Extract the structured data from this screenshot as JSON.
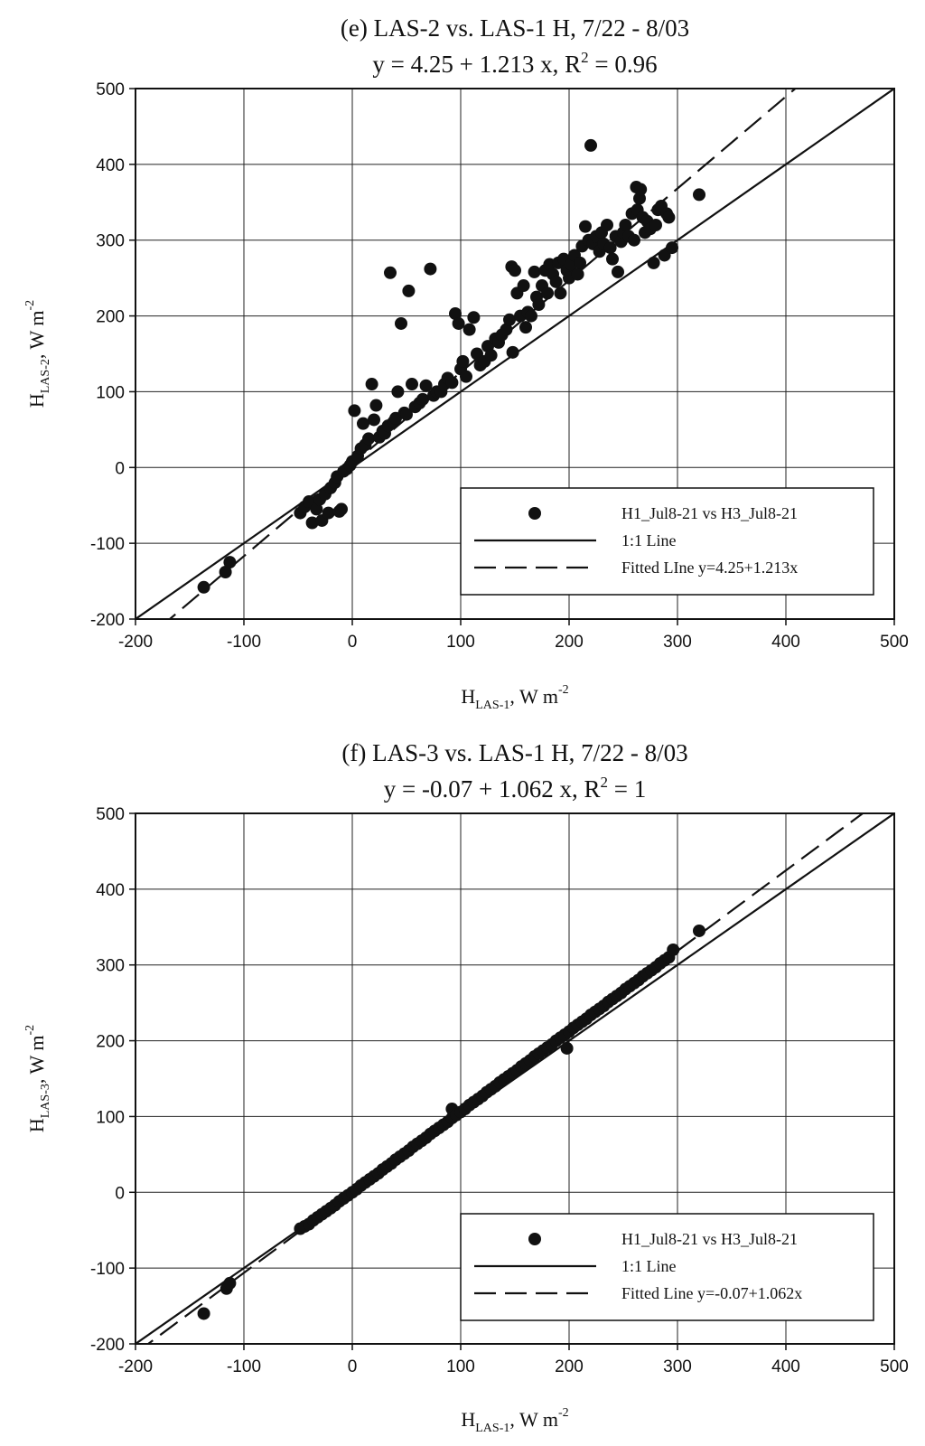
{
  "chart_data": [
    {
      "type": "scatter",
      "title_line1": "(e) LAS-2 vs. LAS-1 H, 7/22 - 8/03",
      "title_line2_main": "y =  4.25 + 1.213 x, R",
      "title_line2_sup": "2",
      "title_line2_tail": " = 0.96",
      "xlabel": {
        "main": "H",
        "sub": "LAS-1",
        "rest": ", W m",
        "sup": "-2"
      },
      "ylabel": {
        "main": "H",
        "sub": "LAS-2",
        "rest": ", W m",
        "sup": "-2"
      },
      "xlim": [
        -200,
        500
      ],
      "ylim": [
        -200,
        500
      ],
      "xticks": [
        -200,
        -100,
        0,
        100,
        200,
        300,
        400,
        500
      ],
      "yticks": [
        -200,
        -100,
        0,
        100,
        200,
        300,
        400,
        500
      ],
      "grid": true,
      "legend_position": "lower-right",
      "legend": [
        "H1_Jul8-21 vs H3_Jul8-21",
        "1:1 Line",
        "Fitted LIne y=4.25+1.213x"
      ],
      "fit": {
        "intercept": 4.25,
        "slope": 1.213
      },
      "series": [
        {
          "marker": "filled-circle",
          "points": [
            [
              -137,
              -158
            ],
            [
              -117,
              -138
            ],
            [
              -113,
              -125
            ],
            [
              -48,
              -60
            ],
            [
              -44,
              -52
            ],
            [
              -40,
              -45
            ],
            [
              -37,
              -73
            ],
            [
              -33,
              -55
            ],
            [
              -30,
              -42
            ],
            [
              -28,
              -70
            ],
            [
              -25,
              -35
            ],
            [
              -22,
              -60
            ],
            [
              -20,
              -27
            ],
            [
              -16,
              -20
            ],
            [
              -14,
              -12
            ],
            [
              -12,
              -58
            ],
            [
              -10,
              -55
            ],
            [
              -8,
              -5
            ],
            [
              -5,
              -2
            ],
            [
              -2,
              3
            ],
            [
              0,
              8
            ],
            [
              2,
              75
            ],
            [
              5,
              15
            ],
            [
              8,
              25
            ],
            [
              10,
              58
            ],
            [
              12,
              30
            ],
            [
              15,
              38
            ],
            [
              18,
              110
            ],
            [
              20,
              63
            ],
            [
              22,
              82
            ],
            [
              25,
              40
            ],
            [
              28,
              48
            ],
            [
              30,
              45
            ],
            [
              33,
              55
            ],
            [
              35,
              257
            ],
            [
              38,
              60
            ],
            [
              40,
              65
            ],
            [
              42,
              100
            ],
            [
              45,
              190
            ],
            [
              48,
              72
            ],
            [
              50,
              70
            ],
            [
              52,
              233
            ],
            [
              55,
              110
            ],
            [
              58,
              80
            ],
            [
              62,
              85
            ],
            [
              65,
              90
            ],
            [
              68,
              108
            ],
            [
              72,
              262
            ],
            [
              75,
              95
            ],
            [
              78,
              100
            ],
            [
              82,
              100
            ],
            [
              85,
              110
            ],
            [
              88,
              118
            ],
            [
              92,
              112
            ],
            [
              95,
              203
            ],
            [
              98,
              190
            ],
            [
              100,
              130
            ],
            [
              102,
              140
            ],
            [
              105,
              120
            ],
            [
              108,
              182
            ],
            [
              112,
              198
            ],
            [
              115,
              150
            ],
            [
              118,
              135
            ],
            [
              122,
              140
            ],
            [
              125,
              160
            ],
            [
              128,
              148
            ],
            [
              132,
              170
            ],
            [
              135,
              165
            ],
            [
              138,
              175
            ],
            [
              142,
              182
            ],
            [
              145,
              195
            ],
            [
              147,
              265
            ],
            [
              148,
              152
            ],
            [
              150,
              260
            ],
            [
              152,
              230
            ],
            [
              155,
              200
            ],
            [
              158,
              240
            ],
            [
              160,
              185
            ],
            [
              162,
              205
            ],
            [
              165,
              200
            ],
            [
              168,
              258
            ],
            [
              170,
              225
            ],
            [
              172,
              215
            ],
            [
              175,
              240
            ],
            [
              178,
              260
            ],
            [
              180,
              230
            ],
            [
              182,
              268
            ],
            [
              185,
              255
            ],
            [
              188,
              245
            ],
            [
              190,
              270
            ],
            [
              192,
              230
            ],
            [
              195,
              275
            ],
            [
              198,
              260
            ],
            [
              200,
              250
            ],
            [
              202,
              268
            ],
            [
              205,
              280
            ],
            [
              208,
              255
            ],
            [
              210,
              270
            ],
            [
              212,
              292
            ],
            [
              215,
              318
            ],
            [
              218,
              300
            ],
            [
              220,
              425
            ],
            [
              222,
              295
            ],
            [
              225,
              305
            ],
            [
              228,
              285
            ],
            [
              230,
              310
            ],
            [
              232,
              295
            ],
            [
              235,
              320
            ],
            [
              238,
              290
            ],
            [
              240,
              275
            ],
            [
              243,
              305
            ],
            [
              245,
              258
            ],
            [
              248,
              298
            ],
            [
              250,
              310
            ],
            [
              252,
              320
            ],
            [
              255,
              305
            ],
            [
              258,
              335
            ],
            [
              260,
              300
            ],
            [
              262,
              370
            ],
            [
              263,
              340
            ],
            [
              265,
              355
            ],
            [
              266,
              367
            ],
            [
              268,
              330
            ],
            [
              270,
              310
            ],
            [
              272,
              325
            ],
            [
              275,
              315
            ],
            [
              278,
              270
            ],
            [
              280,
              320
            ],
            [
              282,
              340
            ],
            [
              285,
              345
            ],
            [
              288,
              280
            ],
            [
              290,
              335
            ],
            [
              292,
              330
            ],
            [
              295,
              290
            ],
            [
              320,
              360
            ]
          ]
        }
      ]
    },
    {
      "type": "scatter",
      "title_line1": "(f) LAS-3 vs. LAS-1 H, 7/22 - 8/03",
      "title_line2_main": "y =  -0.07 + 1.062 x, R",
      "title_line2_sup": "2",
      "title_line2_tail": " = 1",
      "xlabel": {
        "main": "H",
        "sub": "LAS-1",
        "rest": ", W m",
        "sup": "-2"
      },
      "ylabel": {
        "main": "H",
        "sub": "LAS-3",
        "rest": ", W m",
        "sup": "-2"
      },
      "xlim": [
        -200,
        500
      ],
      "ylim": [
        -200,
        500
      ],
      "xticks": [
        -200,
        -100,
        0,
        100,
        200,
        300,
        400,
        500
      ],
      "yticks": [
        -200,
        -100,
        0,
        100,
        200,
        300,
        400,
        500
      ],
      "grid": true,
      "legend_position": "lower-right",
      "legend": [
        "H1_Jul8-21 vs H3_Jul8-21",
        "1:1 Line",
        "Fitted Line y=-0.07+1.062x"
      ],
      "fit": {
        "intercept": -0.07,
        "slope": 1.062
      },
      "series": [
        {
          "marker": "filled-circle",
          "points": [
            [
              -137,
              -160
            ],
            [
              -116,
              -127
            ],
            [
              -113,
              -120
            ],
            [
              -48,
              -48
            ],
            [
              -44,
              -45
            ],
            [
              -40,
              -42
            ],
            [
              -36,
              -37
            ],
            [
              -32,
              -33
            ],
            [
              -28,
              -29
            ],
            [
              -24,
              -25
            ],
            [
              -20,
              -21
            ],
            [
              -16,
              -17
            ],
            [
              -12,
              -12
            ],
            [
              -8,
              -8
            ],
            [
              -4,
              -4
            ],
            [
              0,
              0
            ],
            [
              4,
              4
            ],
            [
              8,
              9
            ],
            [
              12,
              13
            ],
            [
              16,
              17
            ],
            [
              20,
              21
            ],
            [
              24,
              25
            ],
            [
              28,
              30
            ],
            [
              32,
              34
            ],
            [
              36,
              38
            ],
            [
              40,
              43
            ],
            [
              44,
              47
            ],
            [
              48,
              51
            ],
            [
              52,
              55
            ],
            [
              56,
              60
            ],
            [
              60,
              64
            ],
            [
              64,
              68
            ],
            [
              68,
              72
            ],
            [
              72,
              77
            ],
            [
              76,
              81
            ],
            [
              80,
              85
            ],
            [
              84,
              89
            ],
            [
              88,
              93
            ],
            [
              92,
              110
            ],
            [
              92,
              98
            ],
            [
              96,
              102
            ],
            [
              100,
              106
            ],
            [
              104,
              110
            ],
            [
              108,
              115
            ],
            [
              112,
              119
            ],
            [
              116,
              123
            ],
            [
              120,
              127
            ],
            [
              124,
              132
            ],
            [
              128,
              136
            ],
            [
              132,
              140
            ],
            [
              136,
              145
            ],
            [
              140,
              149
            ],
            [
              144,
              153
            ],
            [
              148,
              157
            ],
            [
              152,
              161
            ],
            [
              156,
              166
            ],
            [
              160,
              170
            ],
            [
              164,
              174
            ],
            [
              168,
              179
            ],
            [
              172,
              183
            ],
            [
              176,
              187
            ],
            [
              180,
              191
            ],
            [
              184,
              195
            ],
            [
              188,
              200
            ],
            [
              192,
              204
            ],
            [
              196,
              208
            ],
            [
              198,
              190
            ],
            [
              200,
              212
            ],
            [
              204,
              217
            ],
            [
              208,
              221
            ],
            [
              212,
              225
            ],
            [
              216,
              229
            ],
            [
              220,
              234
            ],
            [
              224,
              238
            ],
            [
              228,
              242
            ],
            [
              232,
              246
            ],
            [
              236,
              251
            ],
            [
              240,
              255
            ],
            [
              244,
              259
            ],
            [
              248,
              263
            ],
            [
              252,
              268
            ],
            [
              256,
              272
            ],
            [
              260,
              276
            ],
            [
              264,
              280
            ],
            [
              268,
              285
            ],
            [
              272,
              289
            ],
            [
              276,
              293
            ],
            [
              280,
              297
            ],
            [
              284,
              302
            ],
            [
              288,
              306
            ],
            [
              292,
              310
            ],
            [
              296,
              320
            ],
            [
              320,
              345
            ]
          ]
        }
      ]
    }
  ]
}
